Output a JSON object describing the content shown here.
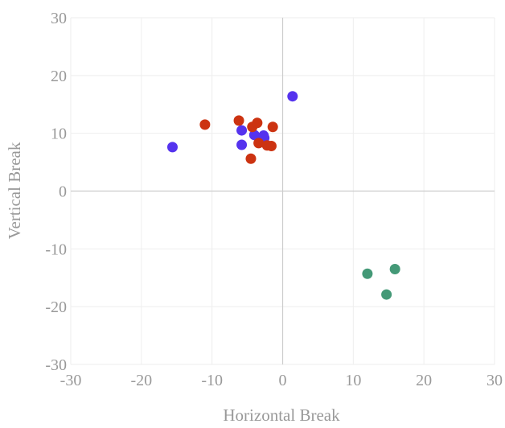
{
  "chart_data": {
    "type": "scatter",
    "title": "",
    "xlabel": "Horizontal Break",
    "ylabel": "Vertical Break",
    "xlim": [
      -30,
      30
    ],
    "ylim": [
      -30,
      30
    ],
    "x_ticks": [
      -30,
      -20,
      -10,
      0,
      10,
      20,
      30
    ],
    "y_ticks": [
      -30,
      -20,
      -10,
      0,
      10,
      20,
      30
    ],
    "grid": true,
    "legend": "none",
    "colors": {
      "grid": "#eeeeee",
      "zero_line": "#cccccc",
      "tick_text": "#999999"
    },
    "series": [
      {
        "color": "#5533ee",
        "points": [
          {
            "x": 1.4,
            "y": 16.4
          },
          {
            "x": -15.6,
            "y": 7.6
          },
          {
            "x": -5.8,
            "y": 10.5
          },
          {
            "x": -5.8,
            "y": 8.0
          },
          {
            "x": -4.0,
            "y": 9.7
          },
          {
            "x": -2.7,
            "y": 9.6
          },
          {
            "x": -2.6,
            "y": 9.2
          }
        ]
      },
      {
        "color": "#cc3311",
        "points": [
          {
            "x": -11.0,
            "y": 11.5
          },
          {
            "x": -6.2,
            "y": 12.2
          },
          {
            "x": -4.3,
            "y": 11.1
          },
          {
            "x": -3.6,
            "y": 11.8
          },
          {
            "x": -1.4,
            "y": 11.1
          },
          {
            "x": -3.4,
            "y": 8.3
          },
          {
            "x": -2.2,
            "y": 7.9
          },
          {
            "x": -1.6,
            "y": 7.8
          },
          {
            "x": -4.5,
            "y": 5.6
          }
        ]
      },
      {
        "color": "#449977",
        "points": [
          {
            "x": 12.0,
            "y": -14.3
          },
          {
            "x": 15.9,
            "y": -13.5
          },
          {
            "x": 14.7,
            "y": -17.9
          }
        ]
      }
    ]
  }
}
